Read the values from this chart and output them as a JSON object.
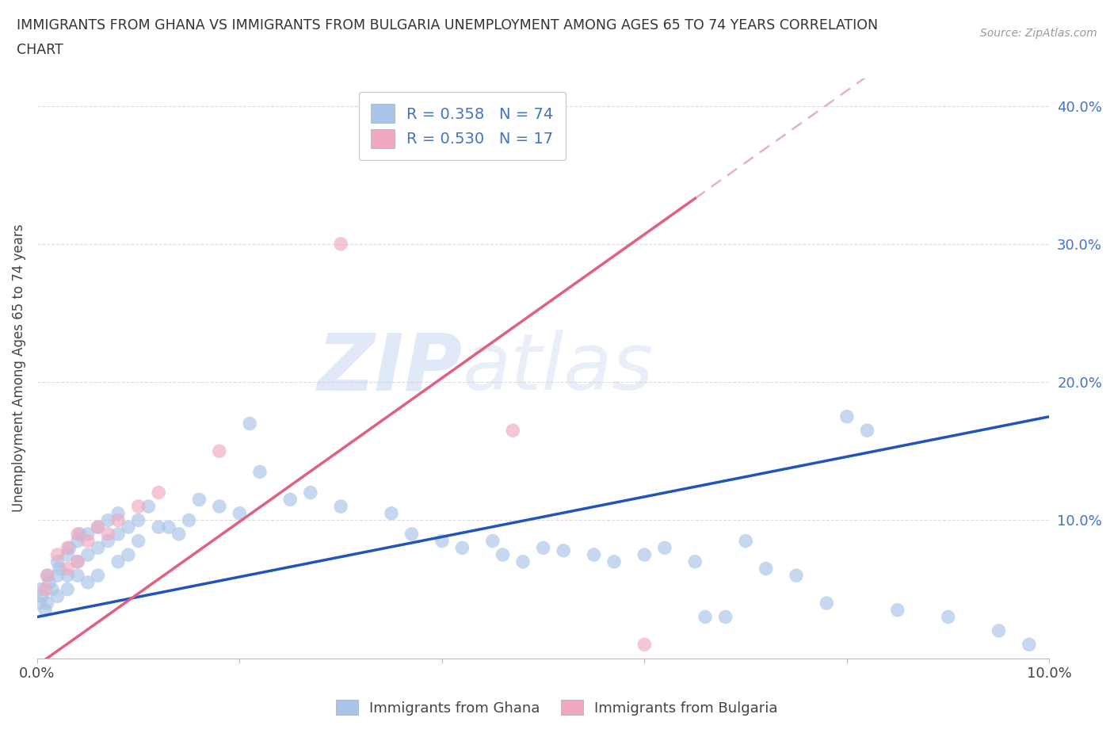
{
  "title_line1": "IMMIGRANTS FROM GHANA VS IMMIGRANTS FROM BULGARIA UNEMPLOYMENT AMONG AGES 65 TO 74 YEARS CORRELATION",
  "title_line2": "CHART",
  "source": "Source: ZipAtlas.com",
  "ylabel": "Unemployment Among Ages 65 to 74 years",
  "xlabel": "",
  "ghana_color": "#a8c4e8",
  "bulgaria_color": "#f0a8be",
  "ghana_R": 0.358,
  "ghana_N": 74,
  "bulgaria_R": 0.53,
  "bulgaria_N": 17,
  "legend_label_ghana": "Immigrants from Ghana",
  "legend_label_bulgaria": "Immigrants from Bulgaria",
  "watermark_zip": "ZIP",
  "watermark_atlas": "atlas",
  "trend_color_ghana": "#2255bb",
  "trend_color_bulgaria": "#e06080",
  "trend_color_dash": "#e8b0c0",
  "xlim": [
    0.0,
    0.1
  ],
  "ylim": [
    0.0,
    0.42
  ],
  "ghana_slope": 1.45,
  "ghana_intercept": 0.03,
  "bulgaria_slope": 5.2,
  "bulgaria_intercept": -0.005,
  "ghana_points": [
    [
      0.0002,
      0.04
    ],
    [
      0.0003,
      0.05
    ],
    [
      0.0005,
      0.045
    ],
    [
      0.0008,
      0.035
    ],
    [
      0.001,
      0.06
    ],
    [
      0.001,
      0.04
    ],
    [
      0.0012,
      0.055
    ],
    [
      0.0015,
      0.05
    ],
    [
      0.002,
      0.07
    ],
    [
      0.002,
      0.06
    ],
    [
      0.002,
      0.045
    ],
    [
      0.0022,
      0.065
    ],
    [
      0.003,
      0.075
    ],
    [
      0.003,
      0.06
    ],
    [
      0.003,
      0.05
    ],
    [
      0.0032,
      0.08
    ],
    [
      0.004,
      0.085
    ],
    [
      0.004,
      0.07
    ],
    [
      0.004,
      0.06
    ],
    [
      0.0042,
      0.09
    ],
    [
      0.005,
      0.09
    ],
    [
      0.005,
      0.075
    ],
    [
      0.005,
      0.055
    ],
    [
      0.006,
      0.095
    ],
    [
      0.006,
      0.08
    ],
    [
      0.006,
      0.06
    ],
    [
      0.007,
      0.1
    ],
    [
      0.007,
      0.085
    ],
    [
      0.008,
      0.105
    ],
    [
      0.008,
      0.09
    ],
    [
      0.008,
      0.07
    ],
    [
      0.009,
      0.095
    ],
    [
      0.009,
      0.075
    ],
    [
      0.01,
      0.1
    ],
    [
      0.01,
      0.085
    ],
    [
      0.011,
      0.11
    ],
    [
      0.012,
      0.095
    ],
    [
      0.013,
      0.095
    ],
    [
      0.014,
      0.09
    ],
    [
      0.015,
      0.1
    ],
    [
      0.016,
      0.115
    ],
    [
      0.018,
      0.11
    ],
    [
      0.02,
      0.105
    ],
    [
      0.021,
      0.17
    ],
    [
      0.022,
      0.135
    ],
    [
      0.025,
      0.115
    ],
    [
      0.027,
      0.12
    ],
    [
      0.03,
      0.11
    ],
    [
      0.035,
      0.105
    ],
    [
      0.037,
      0.09
    ],
    [
      0.04,
      0.085
    ],
    [
      0.042,
      0.08
    ],
    [
      0.045,
      0.085
    ],
    [
      0.046,
      0.075
    ],
    [
      0.048,
      0.07
    ],
    [
      0.05,
      0.08
    ],
    [
      0.052,
      0.078
    ],
    [
      0.055,
      0.075
    ],
    [
      0.057,
      0.07
    ],
    [
      0.06,
      0.075
    ],
    [
      0.062,
      0.08
    ],
    [
      0.065,
      0.07
    ],
    [
      0.066,
      0.03
    ],
    [
      0.068,
      0.03
    ],
    [
      0.07,
      0.085
    ],
    [
      0.072,
      0.065
    ],
    [
      0.075,
      0.06
    ],
    [
      0.078,
      0.04
    ],
    [
      0.08,
      0.175
    ],
    [
      0.082,
      0.165
    ],
    [
      0.085,
      0.035
    ],
    [
      0.09,
      0.03
    ],
    [
      0.095,
      0.02
    ],
    [
      0.098,
      0.01
    ]
  ],
  "bulgaria_points": [
    [
      0.0008,
      0.05
    ],
    [
      0.001,
      0.06
    ],
    [
      0.002,
      0.075
    ],
    [
      0.003,
      0.08
    ],
    [
      0.003,
      0.065
    ],
    [
      0.004,
      0.09
    ],
    [
      0.004,
      0.07
    ],
    [
      0.005,
      0.085
    ],
    [
      0.006,
      0.095
    ],
    [
      0.007,
      0.09
    ],
    [
      0.008,
      0.1
    ],
    [
      0.01,
      0.11
    ],
    [
      0.012,
      0.12
    ],
    [
      0.018,
      0.15
    ],
    [
      0.03,
      0.3
    ],
    [
      0.047,
      0.165
    ],
    [
      0.06,
      0.01
    ]
  ]
}
